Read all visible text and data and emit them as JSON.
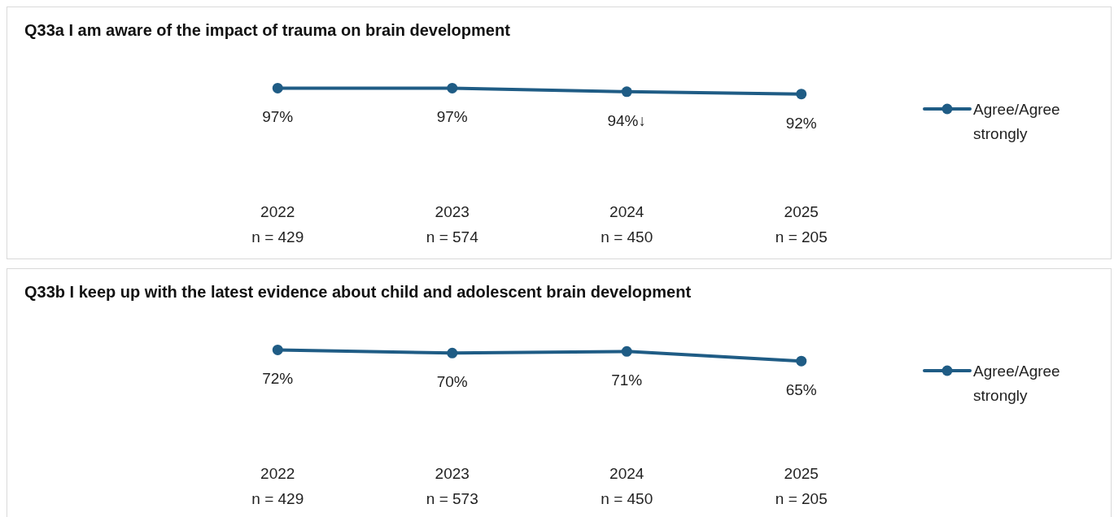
{
  "chart_data": [
    {
      "type": "line",
      "title": "Q33a I am aware of the impact of trauma on brain development",
      "categories": [
        "2022\nn = 429",
        "2023\nn = 574",
        "2024\nn = 450",
        "2025\nn = 205"
      ],
      "tick_labels": "x",
      "legend": "right",
      "marker": "circle",
      "series": [
        {
          "name": "Agree/Agree strongly",
          "color": "#1f5c85",
          "values": [
            97,
            97,
            94,
            92
          ],
          "value_labels": [
            "97%",
            "97%",
            "94%↓",
            "92%"
          ]
        }
      ]
    },
    {
      "type": "line",
      "title": "Q33b I keep up with the latest evidence about child and adolescent brain development",
      "categories": [
        "2022\nn = 429",
        "2023\nn = 573",
        "2024\nn = 450",
        "2025\nn = 205"
      ],
      "tick_labels": "x",
      "legend": "right",
      "marker": "circle",
      "series": [
        {
          "name": "Agree/Agree strongly",
          "color": "#1f5c85",
          "values": [
            72,
            70,
            71,
            65
          ],
          "value_labels": [
            "72%",
            "70%",
            "71%",
            "65%"
          ]
        }
      ]
    }
  ]
}
